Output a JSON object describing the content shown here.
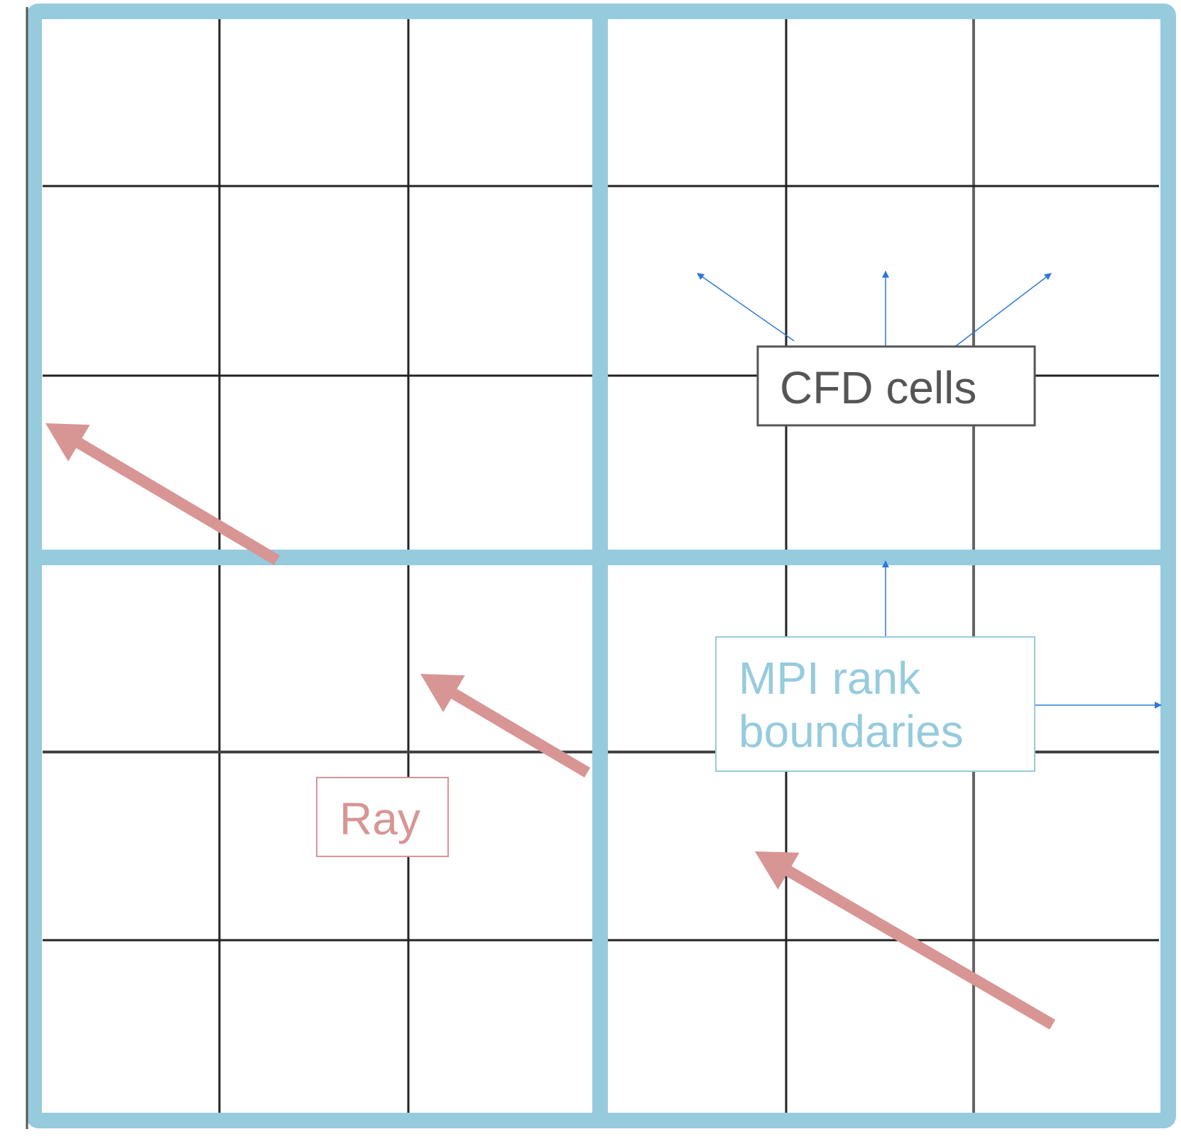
{
  "colors": {
    "grid_line": "#222222",
    "rank_boundary": "#96cbdd",
    "ray": "#d79594",
    "pointer_arrow": "#2f78d8",
    "cfd_label_border": "#555555",
    "cfd_label_text": "#555555",
    "mpi_label_text": "#96cbdd",
    "ray_label_text": "#d79594",
    "background": "#ffffff"
  },
  "labels": {
    "cfd_cells": "CFD cells",
    "mpi_line1": "MPI rank",
    "mpi_line2": "boundaries",
    "ray": "Ray"
  }
}
